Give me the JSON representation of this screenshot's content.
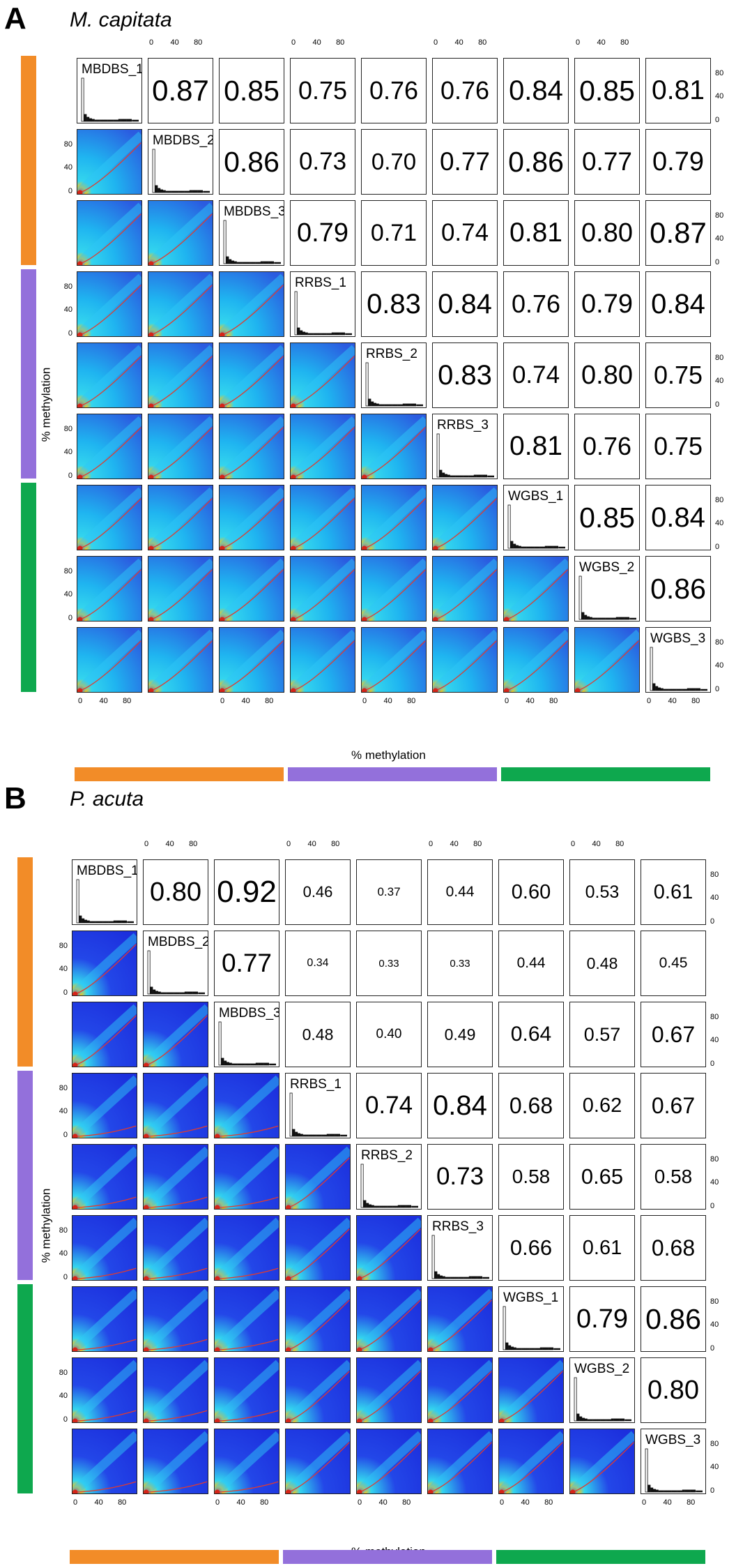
{
  "colors": {
    "orange": "#f28c28",
    "purple": "#9370db",
    "green": "#0ea84e"
  },
  "axis_ticks": [
    "0",
    "40",
    "80"
  ],
  "chart_data": [
    {
      "type": "heatmap",
      "panel_letter": "A",
      "title": "M. capitata",
      "xlabel": "% methylation",
      "ylabel": "% methylation",
      "xlim": [
        0,
        100
      ],
      "ylim": [
        0,
        100
      ],
      "samples": [
        "MBDBS_1",
        "MBDBS_2",
        "MBDBS_3",
        "RRBS_1",
        "RRBS_2",
        "RRBS_3",
        "WGBS_1",
        "WGBS_2",
        "WGBS_3"
      ],
      "groups": [
        {
          "color": "orange",
          "start": 0,
          "end": 2
        },
        {
          "color": "purple",
          "start": 3,
          "end": 5
        },
        {
          "color": "green",
          "start": 6,
          "end": 8
        }
      ],
      "correlations": [
        [
          null,
          "0.87",
          "0.85",
          "0.75",
          "0.76",
          "0.76",
          "0.84",
          "0.85",
          "0.81"
        ],
        [
          null,
          null,
          "0.86",
          "0.73",
          "0.70",
          "0.77",
          "0.86",
          "0.77",
          "0.79"
        ],
        [
          null,
          null,
          null,
          "0.79",
          "0.71",
          "0.74",
          "0.81",
          "0.80",
          "0.87"
        ],
        [
          null,
          null,
          null,
          null,
          "0.83",
          "0.84",
          "0.76",
          "0.79",
          "0.84"
        ],
        [
          null,
          null,
          null,
          null,
          null,
          "0.83",
          "0.74",
          "0.80",
          "0.75"
        ],
        [
          null,
          null,
          null,
          null,
          null,
          null,
          "0.81",
          "0.76",
          "0.75"
        ],
        [
          null,
          null,
          null,
          null,
          null,
          null,
          null,
          "0.85",
          "0.84"
        ],
        [
          null,
          null,
          null,
          null,
          null,
          null,
          null,
          null,
          "0.86"
        ],
        [
          null,
          null,
          null,
          null,
          null,
          null,
          null,
          null,
          null
        ]
      ]
    },
    {
      "type": "heatmap",
      "panel_letter": "B",
      "title": "P. acuta",
      "xlabel": "% methylation",
      "ylabel": "% methylation",
      "xlim": [
        0,
        100
      ],
      "ylim": [
        0,
        100
      ],
      "samples": [
        "MBDBS_1",
        "MBDBS_2",
        "MBDBS_3",
        "RRBS_1",
        "RRBS_2",
        "RRBS_3",
        "WGBS_1",
        "WGBS_2",
        "WGBS_3"
      ],
      "groups": [
        {
          "color": "orange",
          "start": 0,
          "end": 2
        },
        {
          "color": "purple",
          "start": 3,
          "end": 5
        },
        {
          "color": "green",
          "start": 6,
          "end": 8
        }
      ],
      "correlations": [
        [
          null,
          "0.80",
          "0.92",
          "0.46",
          "0.37",
          "0.44",
          "0.60",
          "0.53",
          "0.61"
        ],
        [
          null,
          null,
          "0.77",
          "0.34",
          "0.33",
          "0.33",
          "0.44",
          "0.48",
          "0.45"
        ],
        [
          null,
          null,
          null,
          "0.48",
          "0.40",
          "0.49",
          "0.64",
          "0.57",
          "0.67"
        ],
        [
          null,
          null,
          null,
          null,
          "0.74",
          "0.84",
          "0.68",
          "0.62",
          "0.67"
        ],
        [
          null,
          null,
          null,
          null,
          null,
          "0.73",
          "0.58",
          "0.65",
          "0.58"
        ],
        [
          null,
          null,
          null,
          null,
          null,
          null,
          "0.66",
          "0.61",
          "0.68"
        ],
        [
          null,
          null,
          null,
          null,
          null,
          null,
          null,
          "0.79",
          "0.86"
        ],
        [
          null,
          null,
          null,
          null,
          null,
          null,
          null,
          null,
          "0.80"
        ],
        [
          null,
          null,
          null,
          null,
          null,
          null,
          null,
          null,
          null
        ]
      ]
    }
  ]
}
